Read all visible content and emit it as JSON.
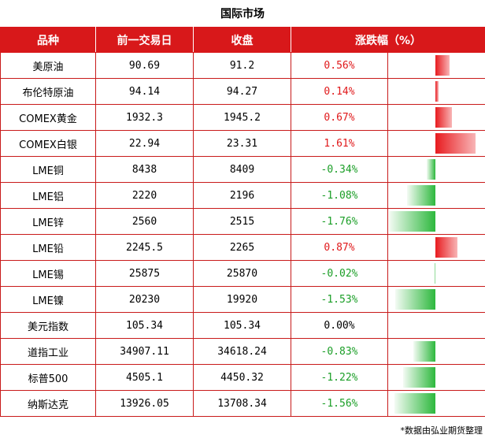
{
  "title": "国际市场",
  "headers": [
    "品种",
    "前一交易日",
    "收盘",
    "涨跌幅（%）"
  ],
  "rows": [
    {
      "name": "美原油",
      "prev": "90.69",
      "close": "91.2",
      "change": "0.56%",
      "pct": 0.56
    },
    {
      "name": "布伦特原油",
      "prev": "94.14",
      "close": "94.27",
      "change": "0.14%",
      "pct": 0.14
    },
    {
      "name": "COMEX黄金",
      "prev": "1932.3",
      "close": "1945.2",
      "change": "0.67%",
      "pct": 0.67
    },
    {
      "name": "COMEX白银",
      "prev": "22.94",
      "close": "23.31",
      "change": "1.61%",
      "pct": 1.61
    },
    {
      "name": "LME铜",
      "prev": "8438",
      "close": "8409",
      "change": "-0.34%",
      "pct": -0.34
    },
    {
      "name": "LME铝",
      "prev": "2220",
      "close": "2196",
      "change": "-1.08%",
      "pct": -1.08
    },
    {
      "name": "LME锌",
      "prev": "2560",
      "close": "2515",
      "change": "-1.76%",
      "pct": -1.76
    },
    {
      "name": "LME铅",
      "prev": "2245.5",
      "close": "2265",
      "change": "0.87%",
      "pct": 0.87
    },
    {
      "name": "LME锡",
      "prev": "25875",
      "close": "25870",
      "change": "-0.02%",
      "pct": -0.02
    },
    {
      "name": "LME镍",
      "prev": "20230",
      "close": "19920",
      "change": "-1.53%",
      "pct": -1.53
    },
    {
      "name": "美元指数",
      "prev": "105.34",
      "close": "105.34",
      "change": "0.00%",
      "pct": 0.0
    },
    {
      "name": "道指工业",
      "prev": "34907.11",
      "close": "34618.24",
      "change": "-0.83%",
      "pct": -0.83
    },
    {
      "name": "标普500",
      "prev": "4505.1",
      "close": "4450.32",
      "change": "-1.22%",
      "pct": -1.22
    },
    {
      "name": "纳斯达克",
      "prev": "13926.05",
      "close": "13708.34",
      "change": "-1.56%",
      "pct": -1.56
    }
  ],
  "colors": {
    "header_bg": "#d8181a",
    "positive": "#e0191b",
    "negative": "#1a9e26"
  },
  "note": "*数据由弘业期货整理"
}
